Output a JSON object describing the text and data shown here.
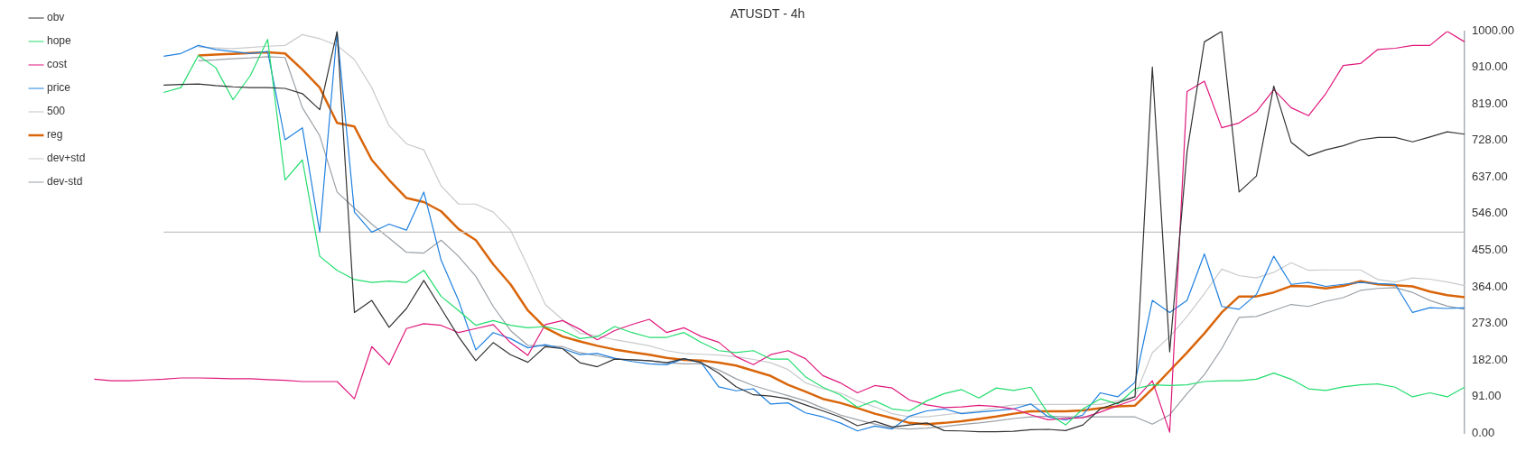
{
  "chart_data": {
    "type": "line",
    "title": "ATUSDT - 4h",
    "categories": [
      null,
      null,
      null,
      null,
      null,
      null,
      null,
      null,
      null,
      null,
      null,
      null,
      null,
      null,
      null,
      null,
      null,
      null,
      null,
      null,
      null,
      null,
      null,
      null,
      null,
      null,
      null,
      null,
      null,
      null,
      null,
      null,
      null,
      null,
      null,
      null,
      null,
      null,
      null,
      null,
      null,
      null,
      null,
      null,
      null,
      null,
      null,
      null,
      null,
      null,
      null,
      null,
      null,
      null,
      null,
      null,
      null,
      null,
      null,
      null,
      null,
      null,
      null,
      null,
      null,
      null,
      null,
      null,
      null,
      null,
      null,
      null,
      null,
      null,
      null,
      null,
      null,
      null,
      null,
      null
    ],
    "series": [
      {
        "name": "obv",
        "color": "#333333",
        "values": [
          null,
          null,
          null,
          null,
          866,
          868,
          869,
          865,
          862,
          860,
          860,
          858,
          845,
          805,
          1000,
          300,
          330,
          263,
          310,
          380,
          310,
          240,
          180,
          225,
          195,
          176,
          215,
          210,
          175,
          165,
          184,
          182,
          180,
          175,
          185,
          175,
          149,
          115,
          95,
          92,
          85,
          70,
          55,
          40,
          18,
          29,
          15,
          20,
          25,
          6,
          5,
          3,
          3,
          4,
          8,
          9,
          6,
          20,
          60,
          75,
          90,
          911,
          202,
          700,
          974,
          1000,
          600,
          640,
          864,
          724,
          690,
          705,
          715,
          730,
          736,
          736,
          725,
          737,
          750,
          744
        ]
      },
      {
        "name": "hope",
        "color": "#22dd6e",
        "values": [
          null,
          null,
          null,
          null,
          848,
          860,
          940,
          910,
          830,
          890,
          980,
          630,
          680,
          440,
          405,
          382,
          375,
          378,
          375,
          405,
          340,
          305,
          268,
          280,
          268,
          262,
          265,
          255,
          235,
          240,
          265,
          250,
          238,
          238,
          250,
          225,
          205,
          200,
          205,
          184,
          184,
          140,
          114,
          95,
          64,
          80,
          60,
          55,
          80,
          98,
          108,
          87,
          112,
          106,
          114,
          48,
          20,
          60,
          85,
          72,
          110,
          120,
          118,
          120,
          128,
          130,
          130,
          134,
          149,
          134,
          110,
          106,
          115,
          120,
          122,
          114,
          90,
          100,
          90,
          114
        ]
      },
      {
        "name": "cost",
        "color": "#e0177c",
        "values": [
          134,
          130,
          130,
          132,
          134,
          137,
          137,
          136,
          135,
          135,
          133,
          131,
          128,
          128,
          128,
          85,
          215,
          170,
          260,
          272,
          268,
          250,
          260,
          270,
          225,
          193,
          270,
          280,
          258,
          232,
          255,
          270,
          283,
          250,
          262,
          240,
          226,
          190,
          170,
          195,
          205,
          185,
          143,
          125,
          100,
          118,
          112,
          82,
          70,
          63,
          65,
          69,
          66,
          60,
          45,
          33,
          36,
          38,
          52,
          68,
          83,
          130,
          2,
          850,
          876,
          760,
          772,
          800,
          855,
          810,
          790,
          845,
          915,
          920,
          955,
          958,
          965,
          965,
          1000,
          974
        ]
      },
      {
        "name": "price",
        "color": "#1f80e0",
        "values": [
          null,
          null,
          null,
          null,
          938,
          945,
          965,
          955,
          950,
          945,
          950,
          730,
          760,
          500,
          1000,
          550,
          500,
          520,
          505,
          600,
          430,
          330,
          207,
          250,
          235,
          212,
          220,
          210,
          195,
          198,
          186,
          178,
          172,
          170,
          185,
          175,
          115,
          105,
          110,
          72,
          75,
          50,
          40,
          25,
          5,
          17,
          10,
          42,
          55,
          60,
          48,
          52,
          56,
          60,
          72,
          40,
          32,
          45,
          100,
          90,
          126,
          330,
          300,
          330,
          446,
          315,
          308,
          345,
          440,
          370,
          375,
          365,
          370,
          375,
          372,
          370,
          300,
          312,
          310,
          312
        ]
      },
      {
        "name": "500",
        "color": "#c4c4c4",
        "values": [
          null,
          null,
          null,
          null,
          500,
          500,
          500,
          500,
          500,
          500,
          500,
          500,
          500,
          500,
          500,
          500,
          500,
          500,
          500,
          500,
          500,
          500,
          500,
          500,
          500,
          500,
          500,
          500,
          500,
          500,
          500,
          500,
          500,
          500,
          500,
          500,
          500,
          500,
          500,
          500,
          500,
          500,
          500,
          500,
          500,
          500,
          500,
          500,
          500,
          500,
          500,
          500,
          500,
          500,
          500,
          500,
          500,
          500,
          500,
          500,
          500,
          500,
          500,
          500,
          500,
          500,
          500,
          500,
          500,
          500,
          500,
          500,
          500,
          500,
          500,
          500,
          500,
          500,
          500,
          500
        ]
      },
      {
        "name": "reg",
        "color": "#d9650a",
        "values": [
          null,
          null,
          null,
          null,
          null,
          null,
          940,
          942,
          944,
          946,
          948,
          945,
          905,
          860,
          772,
          763,
          680,
          630,
          585,
          575,
          552,
          508,
          480,
          420,
          370,
          305,
          262,
          240,
          228,
          217,
          208,
          201,
          195,
          187,
          182,
          180,
          175,
          168,
          155,
          142,
          120,
          103,
          85,
          75,
          62,
          48,
          37,
          25,
          22,
          25,
          29,
          35,
          41,
          48,
          54,
          54,
          54,
          56,
          62,
          66,
          68,
          110,
          155,
          200,
          248,
          300,
          340,
          340,
          350,
          366,
          365,
          360,
          366,
          378,
          370,
          368,
          365,
          352,
          343,
          338
        ]
      },
      {
        "name": "dev+std",
        "color": "#c8cacd",
        "values": [
          null,
          null,
          null,
          null,
          null,
          null,
          961,
          959,
          957,
          960,
          963,
          965,
          992,
          982,
          965,
          930,
          860,
          765,
          720,
          705,
          615,
          570,
          570,
          550,
          505,
          415,
          320,
          282,
          248,
          242,
          232,
          225,
          217,
          205,
          198,
          196,
          194,
          190,
          183,
          175,
          158,
          125,
          110,
          100,
          80,
          65,
          48,
          40,
          40,
          45,
          50,
          55,
          63,
          70,
          71,
          71,
          71,
          71,
          71,
          80,
          91,
          200,
          240,
          290,
          347,
          408,
          392,
          386,
          400,
          424,
          405,
          406,
          406,
          406,
          382,
          376,
          386,
          383,
          376,
          367
        ]
      },
      {
        "name": "dev-std",
        "color": "#9aa0a6",
        "values": [
          null,
          null,
          null,
          null,
          null,
          null,
          927,
          929,
          932,
          934,
          937,
          935,
          810,
          740,
          600,
          560,
          520,
          485,
          450,
          448,
          480,
          440,
          390,
          315,
          255,
          218,
          217,
          215,
          200,
          192,
          185,
          182,
          180,
          175,
          172,
          172,
          157,
          135,
          118,
          105,
          93,
          80,
          62,
          45,
          33,
          22,
          12,
          10,
          12,
          16,
          21,
          25,
          30,
          36,
          40,
          42,
          40,
          40,
          40,
          40,
          40,
          22,
          45,
          98,
          145,
          210,
          288,
          290,
          305,
          320,
          315,
          328,
          337,
          355,
          360,
          362,
          350,
          330,
          316,
          308
        ]
      }
    ],
    "ylim": [
      0,
      1000
    ],
    "yticks": [
      {
        "value": 0,
        "label": "0.00"
      },
      {
        "value": 91,
        "label": "91.00"
      },
      {
        "value": 182,
        "label": "182.00"
      },
      {
        "value": 273,
        "label": "273.00"
      },
      {
        "value": 364,
        "label": "364.00"
      },
      {
        "value": 455,
        "label": "455.00"
      },
      {
        "value": 546,
        "label": "546.00"
      },
      {
        "value": 637,
        "label": "637.00"
      },
      {
        "value": 728,
        "label": "728.00"
      },
      {
        "value": 819,
        "label": "819.00"
      },
      {
        "value": 910,
        "label": "910.00"
      },
      {
        "value": 1000,
        "label": "1000.00"
      }
    ],
    "tick_labels": "y",
    "grid": false,
    "legend": "top left",
    "marker": "none",
    "line_style": "solid"
  }
}
